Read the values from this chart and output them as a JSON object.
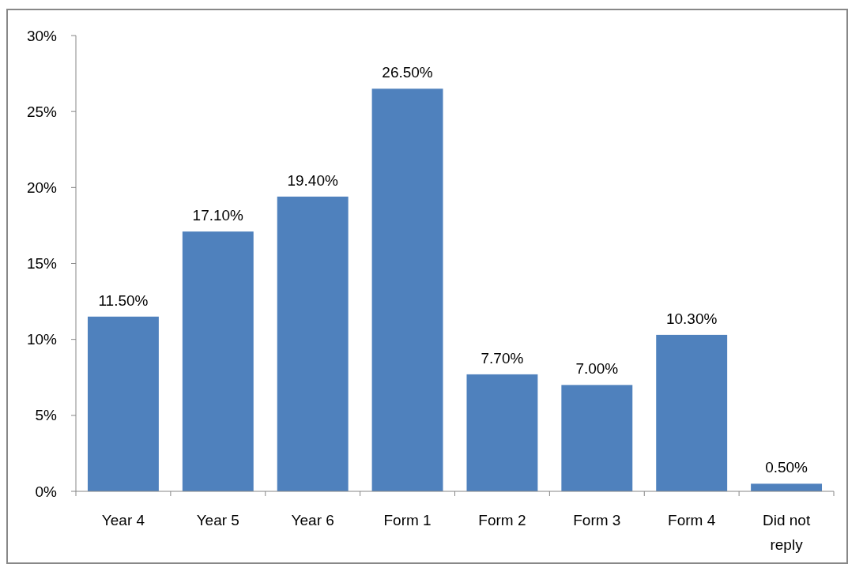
{
  "chart_data": {
    "type": "bar",
    "categories": [
      "Year 4",
      "Year 5",
      "Year 6",
      "Form 1",
      "Form 2",
      "Form 3",
      "Form 4",
      "Did not reply"
    ],
    "values": [
      11.5,
      17.1,
      19.4,
      26.5,
      7.7,
      7.0,
      10.3,
      0.5
    ],
    "value_labels": [
      "11.50%",
      "17.10%",
      "19.40%",
      "26.50%",
      "7.70%",
      "7.00%",
      "10.30%",
      "0.50%"
    ],
    "color": "#4f81bd",
    "ylim": [
      0,
      30
    ],
    "yticks": [
      {
        "value": 0,
        "label": "0%"
      },
      {
        "value": 5,
        "label": "5%"
      },
      {
        "value": 10,
        "label": "10%"
      },
      {
        "value": 15,
        "label": "15%"
      },
      {
        "value": 20,
        "label": "20%"
      },
      {
        "value": 25,
        "label": "25%"
      },
      {
        "value": 30,
        "label": "30%"
      }
    ],
    "grid": false
  }
}
